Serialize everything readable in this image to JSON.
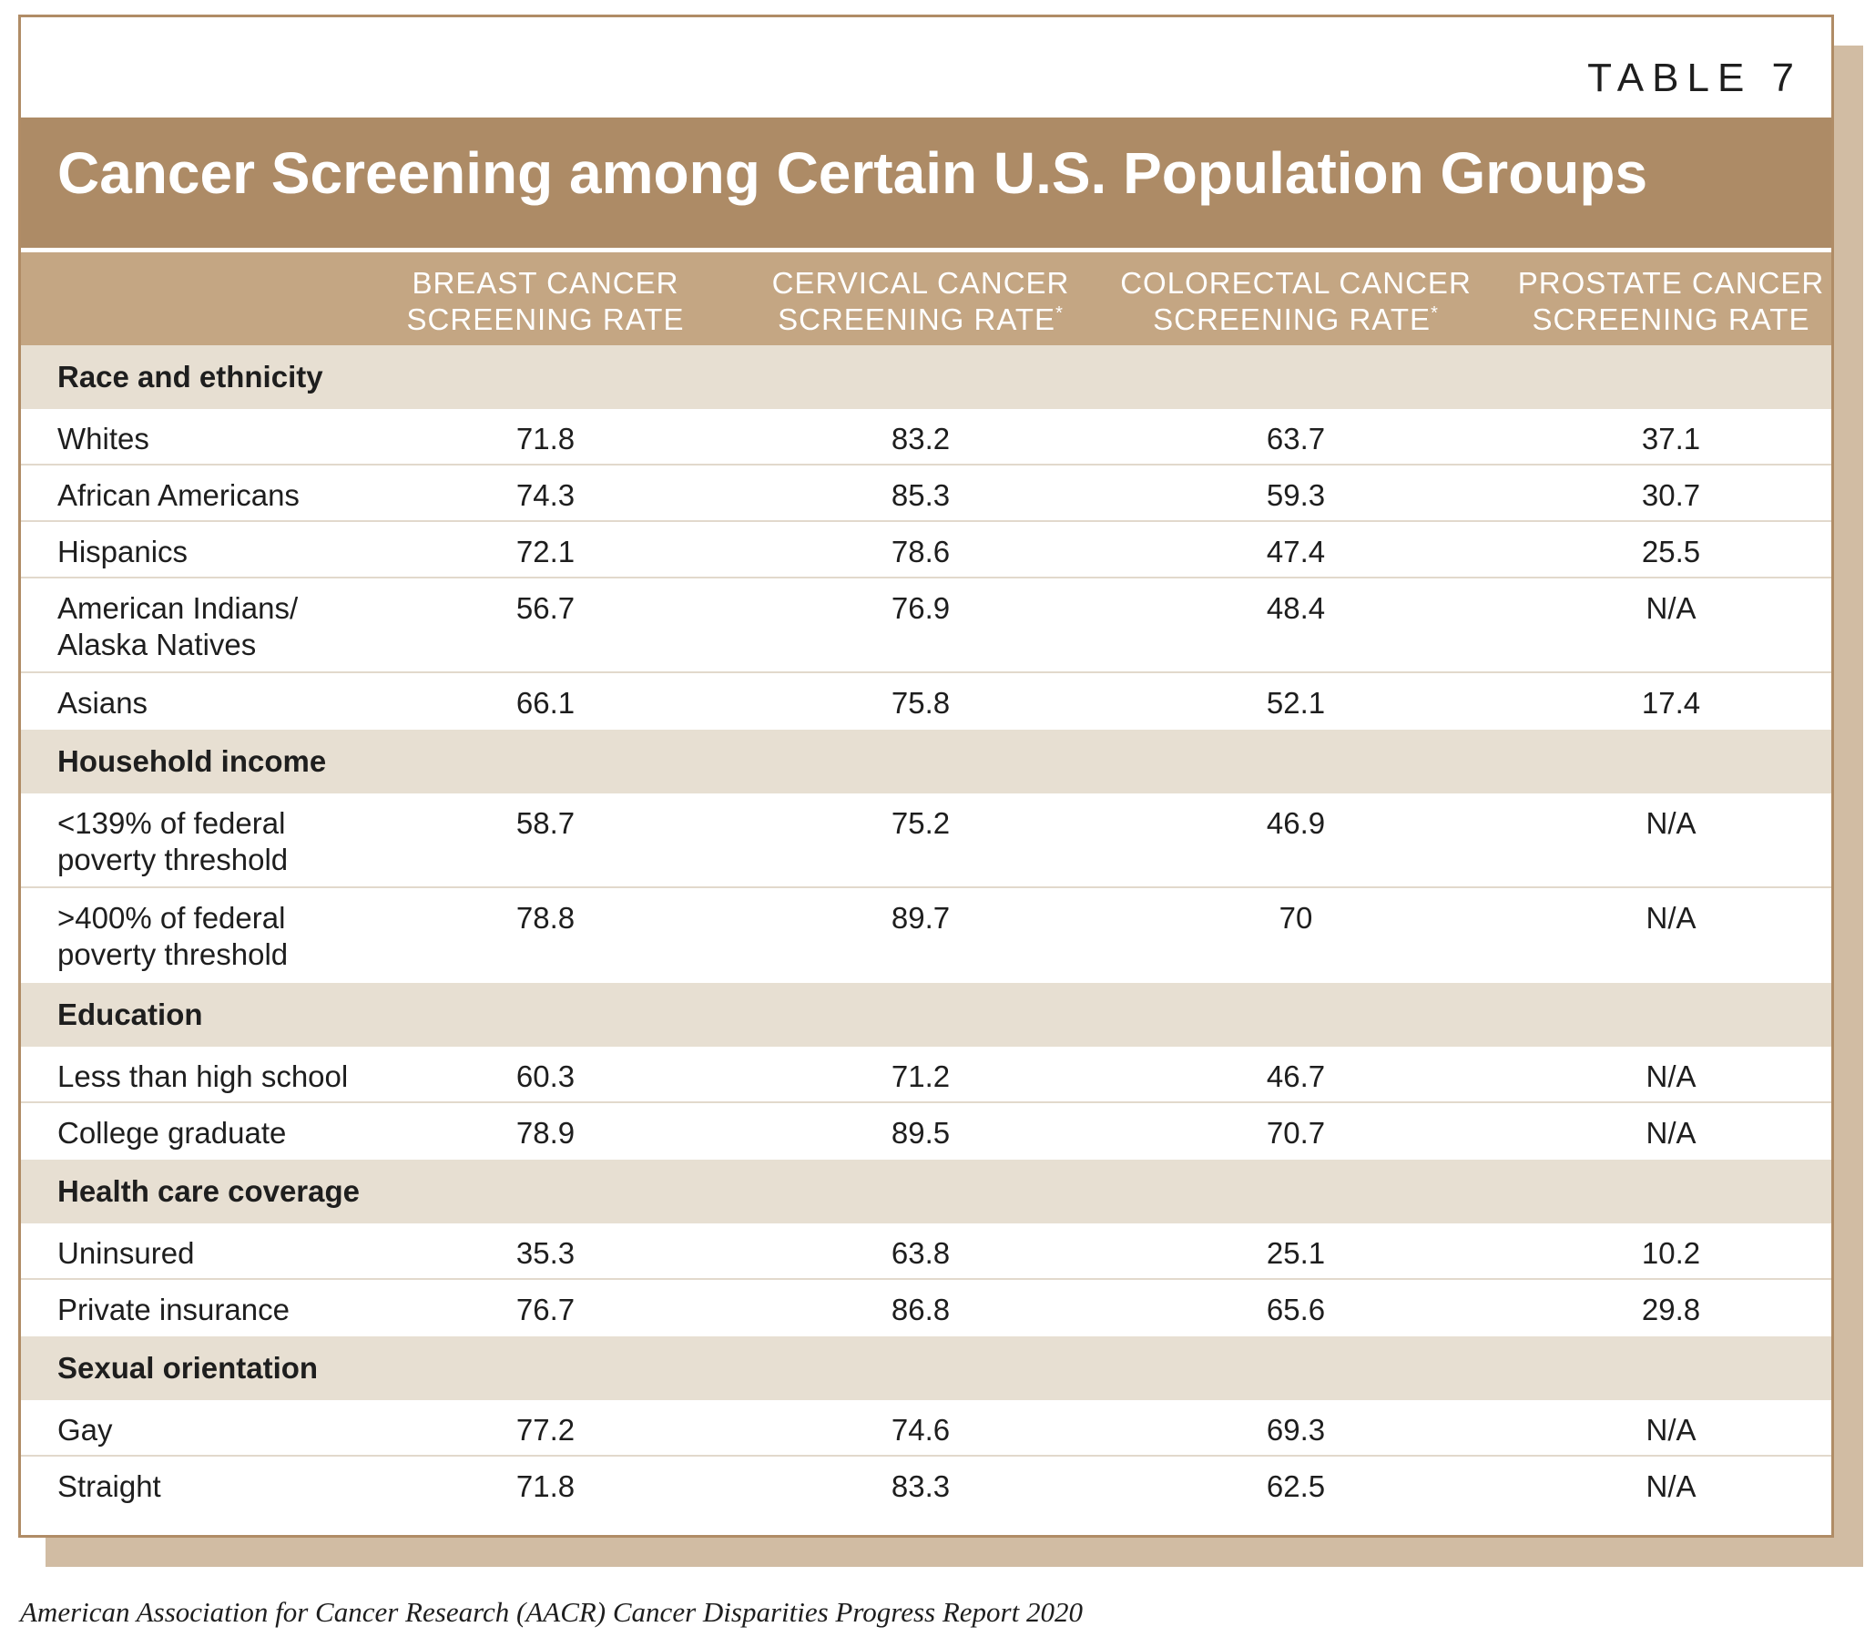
{
  "table_label": "TABLE 7",
  "title": "Cancer Screening among Certain U.S. Population Groups",
  "columns": [
    {
      "line1": "BREAST CANCER",
      "line2": "SCREENING RATE",
      "marker": ""
    },
    {
      "line1": "CERVICAL CANCER",
      "line2": "SCREENING RATE",
      "marker": "*"
    },
    {
      "line1": "COLORECTAL CANCER",
      "line2": "SCREENING RATE",
      "marker": "*"
    },
    {
      "line1": "PROSTATE CANCER",
      "line2": "SCREENING RATE",
      "marker": ""
    }
  ],
  "sections": [
    {
      "label": "Race and ethnicity",
      "rows": [
        {
          "label": "Whites",
          "values": [
            "71.8",
            "83.2",
            "63.7",
            "37.1"
          ]
        },
        {
          "label": "African Americans",
          "values": [
            "74.3",
            "85.3",
            "59.3",
            "30.7"
          ]
        },
        {
          "label": "Hispanics",
          "values": [
            "72.1",
            "78.6",
            "47.4",
            "25.5"
          ]
        },
        {
          "label": "American Indians/ Alaska Natives",
          "values": [
            "56.7",
            "76.9",
            "48.4",
            "N/A"
          ]
        },
        {
          "label": "Asians",
          "values": [
            "66.1",
            "75.8",
            "52.1",
            "17.4"
          ]
        }
      ]
    },
    {
      "label": "Household income",
      "rows": [
        {
          "label": "<139% of federal poverty threshold",
          "values": [
            "58.7",
            "75.2",
            "46.9",
            "N/A"
          ]
        },
        {
          "label": ">400% of federal poverty threshold",
          "values": [
            "78.8",
            "89.7",
            "70",
            "N/A"
          ]
        }
      ]
    },
    {
      "label": "Education",
      "rows": [
        {
          "label": "Less than high school",
          "values": [
            "60.3",
            "71.2",
            "46.7",
            "N/A"
          ]
        },
        {
          "label": "College graduate",
          "values": [
            "78.9",
            "89.5",
            "70.7",
            "N/A"
          ]
        }
      ]
    },
    {
      "label": "Health care coverage",
      "rows": [
        {
          "label": "Uninsured",
          "values": [
            "35.3",
            "63.8",
            "25.1",
            "10.2"
          ]
        },
        {
          "label": "Private insurance",
          "values": [
            "76.7",
            "86.8",
            "65.6",
            "29.8"
          ]
        }
      ]
    },
    {
      "label": "Sexual orientation",
      "rows": [
        {
          "label": "Gay",
          "values": [
            "77.2",
            "74.6",
            "69.3",
            "N/A"
          ]
        },
        {
          "label": "Straight",
          "values": [
            "71.8",
            "83.3",
            "62.5",
            "N/A"
          ]
        }
      ]
    }
  ],
  "source": "American Association for Cancer Research (AACR) Cancer Disparities Progress Report 2020"
}
